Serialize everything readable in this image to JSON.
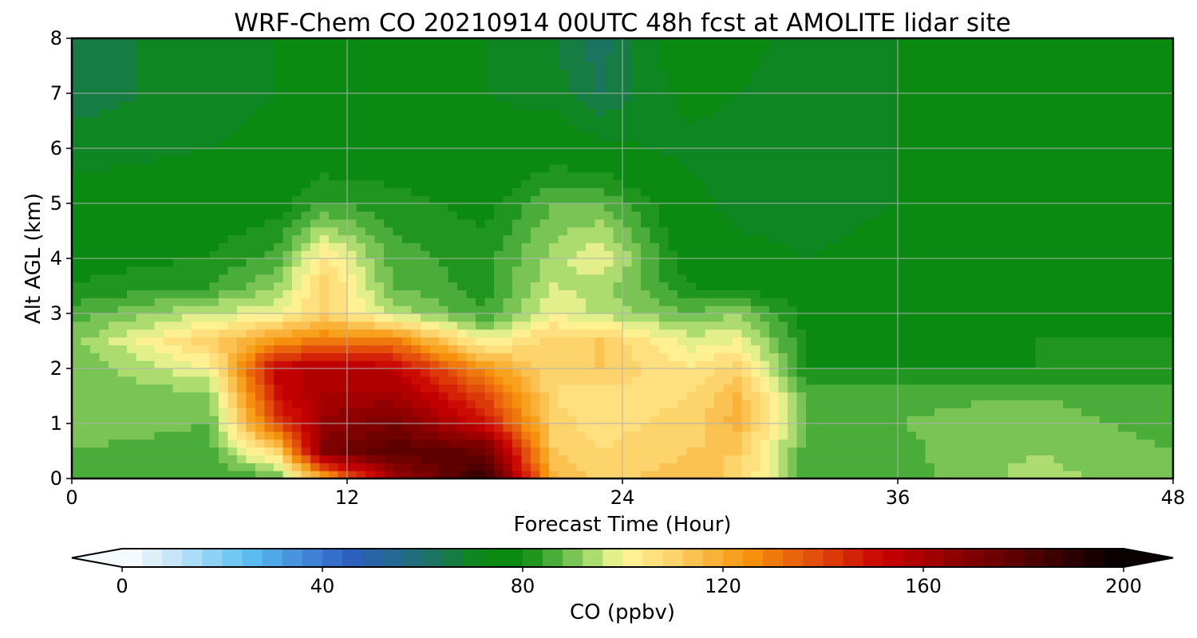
{
  "chart_data": {
    "type": "heatmap",
    "title": "WRF-Chem CO  20210914 00UTC 48h fcst at AMOLITE lidar site",
    "xlabel": "Forecast Time (Hour)",
    "ylabel": "Alt AGL (km)",
    "xlim": [
      0,
      48
    ],
    "ylim": [
      0,
      8
    ],
    "x_ticks": [
      "0",
      "12",
      "24",
      "36",
      "48"
    ],
    "y_ticks": [
      "0",
      "1",
      "2",
      "3",
      "4",
      "5",
      "6",
      "7",
      "8"
    ],
    "grid": true,
    "x": [
      0,
      6,
      9,
      11,
      14,
      18,
      21,
      23,
      27,
      29,
      32,
      36,
      42,
      48
    ],
    "y": [
      0,
      0.5,
      1,
      1.5,
      2,
      2.5,
      3,
      3.5,
      4,
      5,
      6,
      7,
      8
    ],
    "z": [
      [
        86,
        84,
        86,
        120,
        160,
        190,
        118,
        110,
        115,
        110,
        85,
        86,
        94,
        88
      ],
      [
        88,
        86,
        110,
        170,
        180,
        175,
        112,
        108,
        112,
        112,
        86,
        87,
        92,
        88
      ],
      [
        90,
        88,
        140,
        165,
        172,
        150,
        110,
        106,
        110,
        118,
        88,
        88,
        90,
        86
      ],
      [
        90,
        90,
        150,
        160,
        162,
        140,
        108,
        105,
        108,
        116,
        86,
        87,
        88,
        86
      ],
      [
        88,
        100,
        155,
        158,
        155,
        125,
        108,
        112,
        104,
        110,
        80,
        80,
        80,
        80
      ],
      [
        90,
        110,
        125,
        130,
        130,
        100,
        110,
        112,
        98,
        100,
        80,
        78,
        80,
        80
      ],
      [
        86,
        96,
        100,
        110,
        95,
        84,
        100,
        95,
        88,
        92,
        78,
        76,
        78,
        78
      ],
      [
        80,
        84,
        92,
        110,
        88,
        82,
        96,
        94,
        80,
        78,
        76,
        75,
        77,
        78
      ],
      [
        78,
        80,
        86,
        105,
        86,
        82,
        94,
        100,
        76,
        74,
        72,
        74,
        76,
        78
      ],
      [
        74,
        76,
        78,
        84,
        82,
        78,
        88,
        88,
        74,
        70,
        70,
        72,
        74,
        76
      ],
      [
        70,
        72,
        74,
        76,
        76,
        74,
        76,
        74,
        70,
        70,
        68,
        72,
        74,
        76
      ],
      [
        66,
        70,
        72,
        72,
        74,
        72,
        70,
        64,
        74,
        72,
        70,
        72,
        74,
        76
      ],
      [
        66,
        70,
        72,
        72,
        74,
        72,
        68,
        62,
        78,
        74,
        70,
        72,
        74,
        76
      ]
    ],
    "colorbar": {
      "label": "CO  (ppbv)",
      "min": 0,
      "max": 200,
      "extend": "both",
      "ticks": [
        "0",
        "40",
        "80",
        "120",
        "160",
        "200"
      ],
      "levels": 50,
      "colors": [
        {
          "v": 0,
          "c": "#ffffff"
        },
        {
          "v": 10,
          "c": "#c6e6f7"
        },
        {
          "v": 25,
          "c": "#5cc0f2"
        },
        {
          "v": 45,
          "c": "#2f5fc4"
        },
        {
          "v": 60,
          "c": "#1e6f70"
        },
        {
          "v": 72,
          "c": "#0b8a12"
        },
        {
          "v": 80,
          "c": "#0b8a12"
        },
        {
          "v": 88,
          "c": "#5fb846"
        },
        {
          "v": 96,
          "c": "#c5e67c"
        },
        {
          "v": 100,
          "c": "#fff79a"
        },
        {
          "v": 110,
          "c": "#fdd36b"
        },
        {
          "v": 125,
          "c": "#f7940c"
        },
        {
          "v": 140,
          "c": "#e0440b"
        },
        {
          "v": 152,
          "c": "#c80000"
        },
        {
          "v": 175,
          "c": "#6b0000"
        },
        {
          "v": 200,
          "c": "#000000"
        }
      ]
    }
  }
}
